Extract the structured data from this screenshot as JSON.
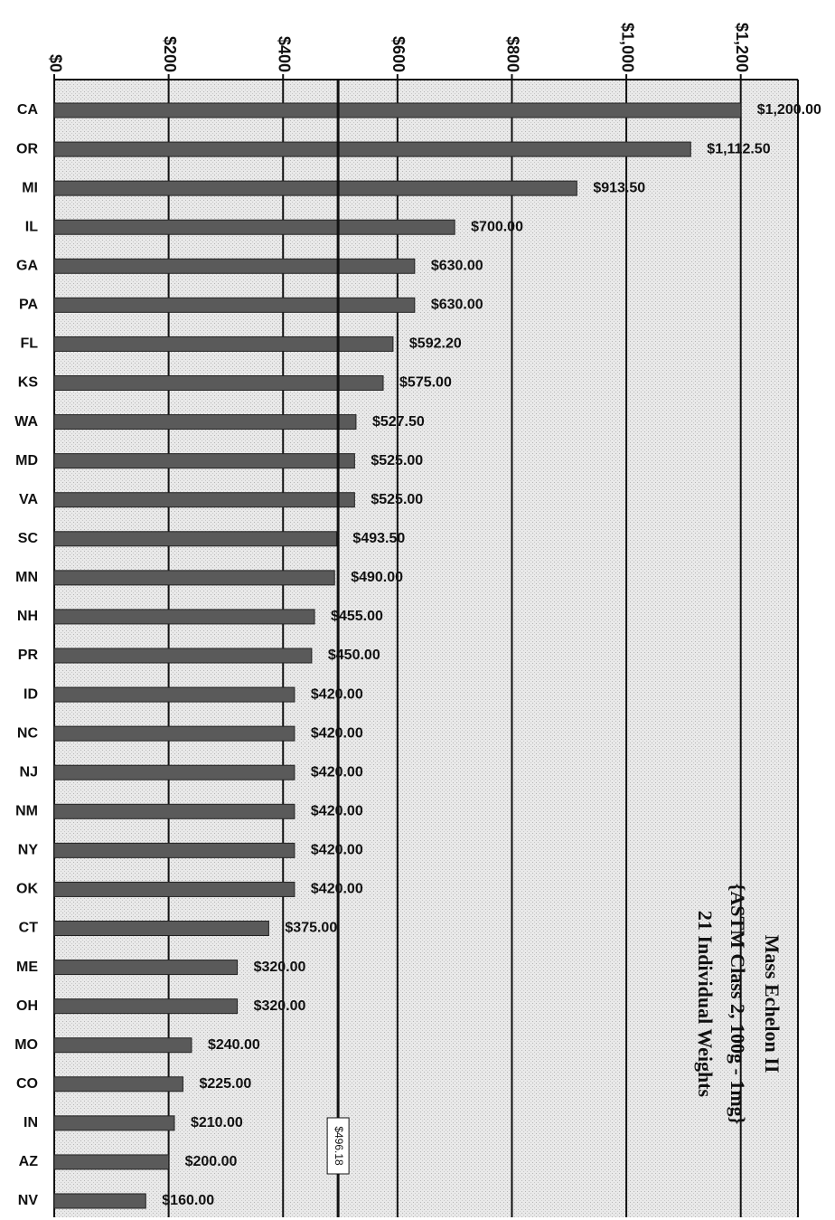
{
  "chart_data": {
    "type": "bar",
    "orientation": "horizontal",
    "title": "Mass Echelon II",
    "subtitle": "{ASTM Class 2, 100g - 1mg}",
    "annotation": "21 Individual Weights",
    "categories": [
      "CA",
      "OR",
      "MI",
      "IL",
      "GA",
      "PA",
      "FL",
      "KS",
      "WA",
      "MD",
      "VA",
      "SC",
      "MN",
      "NH",
      "PR",
      "ID",
      "NC",
      "NJ",
      "NM",
      "NY",
      "OK",
      "CT",
      "ME",
      "OH",
      "MO",
      "CO",
      "IN",
      "AZ",
      "NV"
    ],
    "values": [
      1200,
      1112.5,
      913.5,
      700,
      630,
      630,
      592.2,
      575,
      527.5,
      525,
      525,
      493.5,
      490,
      455,
      450,
      420,
      420,
      420,
      420,
      420,
      420,
      375,
      320,
      320,
      240,
      225,
      210,
      200,
      160
    ],
    "value_labels": [
      "$1,200.00",
      "$1,112.50",
      "$913.50",
      "$700.00",
      "$630.00",
      "$630.00",
      "$592.20",
      "$575.00",
      "$527.50",
      "$525.00",
      "$525.00",
      "$493.50",
      "$490.00",
      "$455.00",
      "$450.00",
      "$420.00",
      "$420.00",
      "$420.00",
      "$420.00",
      "$420.00",
      "$420.00",
      "$375.00",
      "$320.00",
      "$320.00",
      "$240.00",
      "$225.00",
      "$210.00",
      "$200.00",
      "$160.00"
    ],
    "color": "#5a5a5a",
    "xlim": [
      0,
      1300
    ],
    "xticks": [
      {
        "value": 0,
        "label": "$0"
      },
      {
        "value": 200,
        "label": "$200"
      },
      {
        "value": 400,
        "label": "$400"
      },
      {
        "value": 600,
        "label": "$600"
      },
      {
        "value": 800,
        "label": "$800"
      },
      {
        "value": 1000,
        "label": "$1,000"
      },
      {
        "value": 1200,
        "label": "$1,200"
      }
    ],
    "grid": true,
    "reference_line": {
      "value": 496.18,
      "label": "$496.18"
    }
  }
}
